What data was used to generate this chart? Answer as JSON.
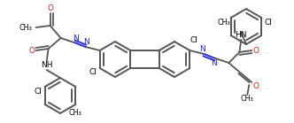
{
  "bg_color": "#ffffff",
  "line_color": "#555555",
  "line_width": 1.3,
  "text_color": "#000000",
  "N_color": "#2222cc",
  "O_color": "#cc2222",
  "figsize": [
    3.32,
    1.39
  ],
  "dpi": 100,
  "xlim": [
    0,
    332
  ],
  "ylim": [
    0,
    139
  ]
}
